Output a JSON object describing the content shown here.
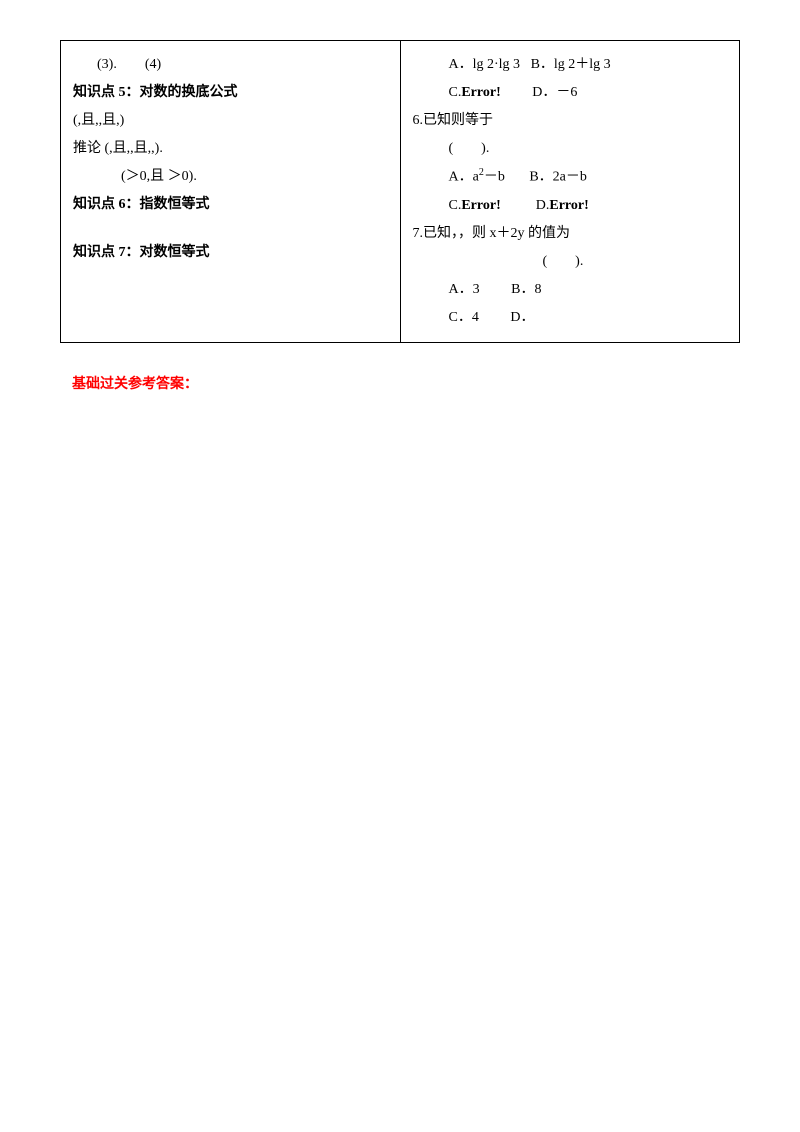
{
  "leftColumn": {
    "line1": "(3).　　(4)",
    "heading5_prefix": "知识点 5：",
    "heading5_text": "对数的换底公式",
    "line3": "(,且,,且,)",
    "line4": "推论 (,且,,且,,).",
    "line5": "(＞0,且 ＞0).",
    "heading6_prefix": "知识点 6：",
    "heading6_text": "指数恒等式",
    "heading7_prefix": "知识点 7：",
    "heading7_text": "对数恒等式"
  },
  "rightColumn": {
    "q5_optA": "A．lg 2·lg 3",
    "q5_optB": "B．lg 2＋lg 3",
    "q5_optC_prefix": "C.",
    "q5_optC_error": "Error!",
    "q5_optD": "D．－6",
    "q6_stem": "6.已知则等于",
    "q6_paren": "(　　).",
    "q6_optA_prefix": "A．a",
    "q6_optA_sup": "2",
    "q6_optA_suffix": "－b",
    "q6_optB": "B．2a－b",
    "q6_optC_prefix": "C.",
    "q6_optC_error": "Error!",
    "q6_optD_prefix": "D.",
    "q6_optD_error": "Error!",
    "q7_stem": "7.已知，，则 x＋2y 的值为",
    "q7_paren": "(　　).",
    "q7_optA": "A．3",
    "q7_optB": "B．8",
    "q7_optC": "C．4",
    "q7_optD": "D．"
  },
  "answerKey": "基础过关参考答案：",
  "colors": {
    "text": "#000000",
    "error": "#000000",
    "answerKey": "#ff0000",
    "background": "#ffffff",
    "border": "#000000"
  },
  "layout": {
    "fontSize": 14,
    "lineHeight": 2,
    "tableWidth": "100%",
    "leftColWidth": "50%",
    "rightColWidth": "50%"
  }
}
